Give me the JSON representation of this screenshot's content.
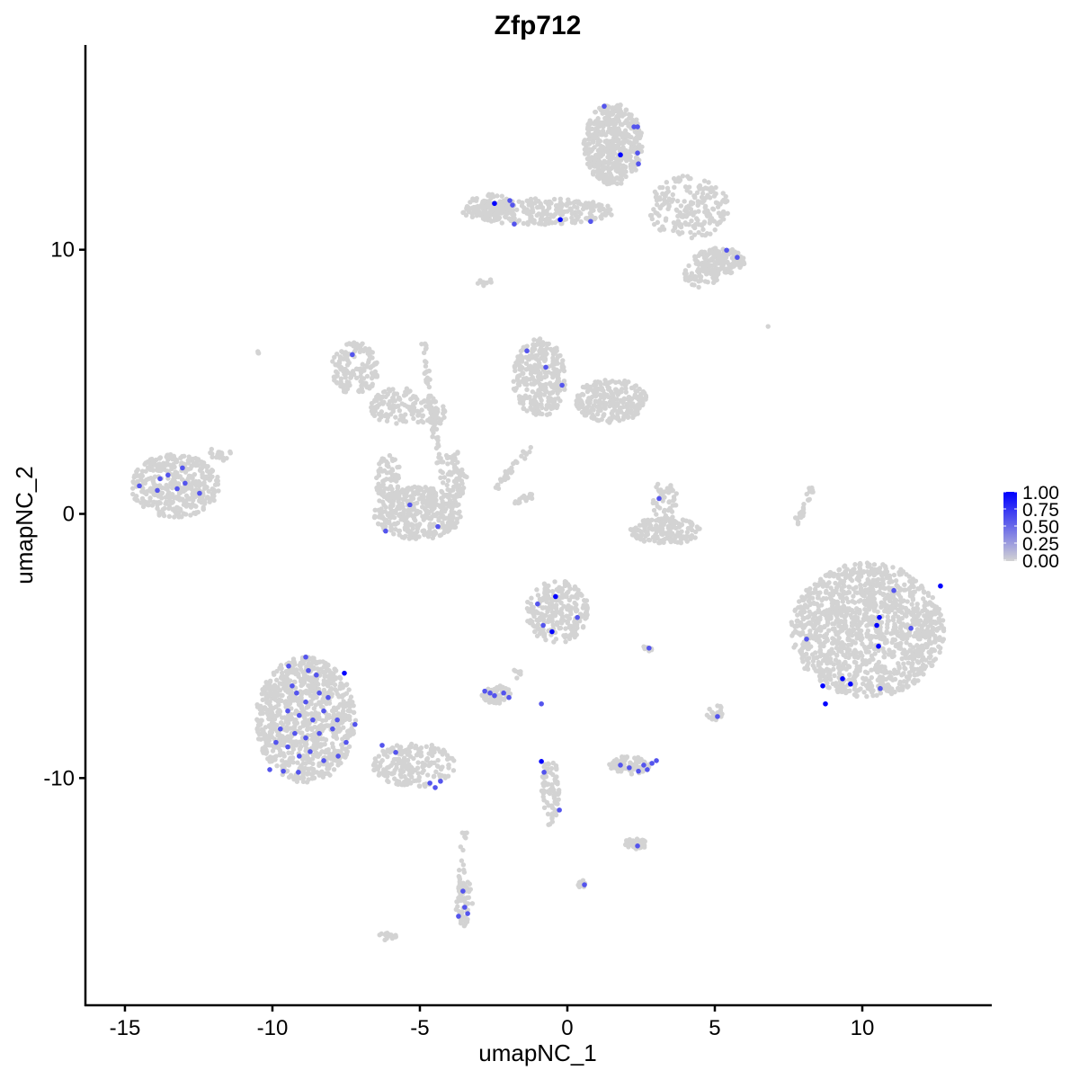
{
  "chart_data": {
    "type": "scatter",
    "title": "Zfp712",
    "xlabel": "umapNC_1",
    "ylabel": "umapNC_2",
    "xlim": [
      -16.34,
      14.39
    ],
    "ylim": [
      -18.6,
      17.75
    ],
    "x_ticks": [
      -15,
      -10,
      -5,
      0,
      5,
      10
    ],
    "y_ticks": [
      -10,
      0,
      10
    ],
    "x_tick_labels": [
      "-15",
      "-10",
      "-5",
      "0",
      "5",
      "10"
    ],
    "y_tick_labels": [
      "-10",
      "0",
      "10"
    ],
    "grid": false,
    "legend": {
      "position": "right",
      "range": [
        0,
        1
      ],
      "labels": [
        "1.00",
        "0.75",
        "0.50",
        "0.25",
        "0.00"
      ],
      "low_color": "#d3d3d3",
      "high_color": "#0000ff"
    },
    "background_clusters": [
      {
        "cx": 1.55,
        "cy": 14.0,
        "rx": 1.0,
        "ry": 1.55,
        "n": 500
      },
      {
        "cx": 4.1,
        "cy": 11.6,
        "rx": 1.4,
        "ry": 1.2,
        "n": 200
      },
      {
        "cx": 5.15,
        "cy": 9.57,
        "rx": 0.9,
        "ry": 0.5,
        "n": 150
      },
      {
        "cx": 4.54,
        "cy": 9.06,
        "rx": 0.6,
        "ry": 0.5,
        "n": 60
      },
      {
        "cx": -0.95,
        "cy": 11.45,
        "rx": 2.6,
        "ry": 0.5,
        "n": 250
      },
      {
        "cx": -2.62,
        "cy": 11.6,
        "rx": 0.8,
        "ry": 0.5,
        "n": 100
      },
      {
        "cx": -7.2,
        "cy": 5.5,
        "rx": 0.8,
        "ry": 1.0,
        "n": 150
      },
      {
        "cx": -5.8,
        "cy": 4.1,
        "rx": 0.9,
        "ry": 0.7,
        "n": 100
      },
      {
        "cx": -4.7,
        "cy": 3.8,
        "rx": 0.6,
        "ry": 0.5,
        "n": 50
      },
      {
        "cx": -5.06,
        "cy": 0.03,
        "rx": 1.5,
        "ry": 1.0,
        "n": 400
      },
      {
        "cx": -6.1,
        "cy": 1.4,
        "rx": 0.45,
        "ry": 0.85,
        "n": 80
      },
      {
        "cx": -3.85,
        "cy": 1.4,
        "rx": 0.45,
        "ry": 1.0,
        "n": 80
      },
      {
        "cx": -0.95,
        "cy": 5.14,
        "rx": 0.9,
        "ry": 1.5,
        "n": 300
      },
      {
        "cx": 1.49,
        "cy": 4.29,
        "rx": 1.2,
        "ry": 0.85,
        "n": 250
      },
      {
        "cx": -13.3,
        "cy": 1.06,
        "rx": 1.5,
        "ry": 1.2,
        "n": 400
      },
      {
        "cx": 3.32,
        "cy": -0.65,
        "rx": 1.2,
        "ry": 0.5,
        "n": 150
      },
      {
        "cx": 3.3,
        "cy": 0.4,
        "rx": 0.45,
        "ry": 0.85,
        "n": 50
      },
      {
        "cx": 10.18,
        "cy": -4.4,
        "rx": 2.6,
        "ry": 2.55,
        "n": 1300
      },
      {
        "cx": -0.34,
        "cy": -3.71,
        "rx": 1.07,
        "ry": 1.2,
        "n": 250
      },
      {
        "cx": -8.87,
        "cy": -7.8,
        "rx": 1.7,
        "ry": 2.4,
        "n": 900
      },
      {
        "cx": -5.2,
        "cy": -9.5,
        "rx": 1.4,
        "ry": 0.85,
        "n": 200
      },
      {
        "cx": -2.4,
        "cy": -6.85,
        "rx": 0.5,
        "ry": 0.35,
        "n": 60
      },
      {
        "cx": 2.1,
        "cy": -9.5,
        "rx": 0.7,
        "ry": 0.35,
        "n": 80
      },
      {
        "cx": -0.58,
        "cy": -10.5,
        "rx": 0.3,
        "ry": 1.3,
        "n": 80
      },
      {
        "cx": 2.3,
        "cy": -12.5,
        "rx": 0.4,
        "ry": 0.2,
        "n": 40
      },
      {
        "cx": -3.5,
        "cy": -14.7,
        "rx": 0.3,
        "ry": 0.9,
        "n": 60
      },
      {
        "cx": -6.1,
        "cy": -16.0,
        "rx": 0.3,
        "ry": 0.15,
        "n": 15
      },
      {
        "cx": 0.5,
        "cy": -14.0,
        "rx": 0.15,
        "ry": 0.15,
        "n": 10
      },
      {
        "cx": 5.0,
        "cy": -7.5,
        "rx": 0.3,
        "ry": 0.3,
        "n": 20
      },
      {
        "cx": 2.7,
        "cy": -5.1,
        "rx": 0.2,
        "ry": 0.1,
        "n": 10
      },
      {
        "cx": -2.8,
        "cy": 8.8,
        "rx": 0.3,
        "ry": 0.2,
        "n": 10
      },
      {
        "cx": -10.5,
        "cy": 6.1,
        "rx": 0.1,
        "ry": 0.1,
        "n": 3
      },
      {
        "cx": -11.8,
        "cy": 2.3,
        "rx": 0.4,
        "ry": 0.3,
        "n": 20
      },
      {
        "cx": 6.8,
        "cy": 7.1,
        "rx": 0.05,
        "ry": 0.05,
        "n": 1
      }
    ],
    "background_segments": [
      {
        "from": [
          -4.9,
          6.5
        ],
        "to": [
          -4.3,
          1.5
        ],
        "n": 60
      },
      {
        "from": [
          -1.3,
          2.5
        ],
        "to": [
          -2.4,
          1.0
        ],
        "n": 30
      },
      {
        "from": [
          -1.7,
          0.5
        ],
        "to": [
          -1.2,
          0.7
        ],
        "n": 20
      },
      {
        "from": [
          7.8,
          -0.3
        ],
        "to": [
          8.3,
          1.0
        ],
        "n": 30
      },
      {
        "from": [
          -3.5,
          -12.0
        ],
        "to": [
          -3.6,
          -13.8
        ],
        "n": 15
      },
      {
        "from": [
          -1.6,
          -6.2
        ],
        "to": [
          -1.8,
          -5.8
        ],
        "n": 10
      }
    ],
    "expressing_cells": [
      {
        "x": 1.25,
        "y": 15.43,
        "value": 0.6
      },
      {
        "x": 2.26,
        "y": 14.65,
        "value": 0.6
      },
      {
        "x": 2.38,
        "y": 14.65,
        "value": 0.6
      },
      {
        "x": 1.8,
        "y": 13.59,
        "value": 1.0
      },
      {
        "x": 2.38,
        "y": 13.66,
        "value": 0.6
      },
      {
        "x": 2.41,
        "y": 13.25,
        "value": 0.6
      },
      {
        "x": -2.47,
        "y": 11.75,
        "value": 1.0
      },
      {
        "x": -1.95,
        "y": 11.86,
        "value": 0.6
      },
      {
        "x": -1.86,
        "y": 11.69,
        "value": 0.6
      },
      {
        "x": -1.8,
        "y": 10.97,
        "value": 0.6
      },
      {
        "x": -0.24,
        "y": 11.14,
        "value": 1.0
      },
      {
        "x": 0.79,
        "y": 11.07,
        "value": 0.6
      },
      {
        "x": 5.4,
        "y": 9.98,
        "value": 0.6
      },
      {
        "x": 5.76,
        "y": 9.71,
        "value": 0.6
      },
      {
        "x": -7.29,
        "y": 6.03,
        "value": 0.6
      },
      {
        "x": -1.37,
        "y": 6.17,
        "value": 0.6
      },
      {
        "x": -0.73,
        "y": 5.55,
        "value": 0.6
      },
      {
        "x": -0.18,
        "y": 4.87,
        "value": 0.6
      },
      {
        "x": -14.51,
        "y": 1.06,
        "value": 0.6
      },
      {
        "x": -13.9,
        "y": 0.89,
        "value": 0.6
      },
      {
        "x": -13.54,
        "y": 1.47,
        "value": 0.6
      },
      {
        "x": -13.05,
        "y": 1.74,
        "value": 0.6
      },
      {
        "x": -12.96,
        "y": 1.16,
        "value": 0.6
      },
      {
        "x": -13.23,
        "y": 0.95,
        "value": 0.6
      },
      {
        "x": -12.47,
        "y": 0.78,
        "value": 0.6
      },
      {
        "x": -13.81,
        "y": 1.33,
        "value": 0.6
      },
      {
        "x": -5.34,
        "y": 0.34,
        "value": 0.6
      },
      {
        "x": -6.16,
        "y": -0.65,
        "value": 0.6
      },
      {
        "x": -4.39,
        "y": -0.48,
        "value": 0.6
      },
      {
        "x": 3.11,
        "y": 0.58,
        "value": 0.6
      },
      {
        "x": -0.4,
        "y": -3.13,
        "value": 1.0
      },
      {
        "x": -1.01,
        "y": -3.41,
        "value": 0.6
      },
      {
        "x": -0.52,
        "y": -4.46,
        "value": 1.0
      },
      {
        "x": -0.82,
        "y": -4.22,
        "value": 0.6
      },
      {
        "x": 0.34,
        "y": -3.92,
        "value": 0.6
      },
      {
        "x": 2.77,
        "y": -5.08,
        "value": 0.6
      },
      {
        "x": -2.62,
        "y": -6.78,
        "value": 0.6
      },
      {
        "x": -2.47,
        "y": -6.88,
        "value": 0.6
      },
      {
        "x": -1.98,
        "y": -6.95,
        "value": 0.6
      },
      {
        "x": -2.8,
        "y": -6.71,
        "value": 0.6
      },
      {
        "x": -2.16,
        "y": -6.78,
        "value": 0.6
      },
      {
        "x": -0.88,
        "y": -7.19,
        "value": 0.6
      },
      {
        "x": 5.09,
        "y": -7.67,
        "value": 0.6
      },
      {
        "x": -0.88,
        "y": -9.37,
        "value": 1.0
      },
      {
        "x": -0.79,
        "y": -9.78,
        "value": 0.6
      },
      {
        "x": -0.27,
        "y": -11.21,
        "value": 0.6
      },
      {
        "x": 2.1,
        "y": -9.61,
        "value": 0.6
      },
      {
        "x": 2.41,
        "y": -9.74,
        "value": 0.6
      },
      {
        "x": 2.71,
        "y": -9.68,
        "value": 0.6
      },
      {
        "x": 2.87,
        "y": -9.44,
        "value": 0.6
      },
      {
        "x": 3.02,
        "y": -9.34,
        "value": 0.6
      },
      {
        "x": 1.8,
        "y": -9.51,
        "value": 0.6
      },
      {
        "x": 2.59,
        "y": -9.51,
        "value": 0.6
      },
      {
        "x": 2.38,
        "y": -12.57,
        "value": 0.6
      },
      {
        "x": 0.58,
        "y": -14.04,
        "value": 0.6
      },
      {
        "x": -3.54,
        "y": -14.28,
        "value": 0.6
      },
      {
        "x": -3.69,
        "y": -15.23,
        "value": 0.6
      },
      {
        "x": -3.38,
        "y": -15.13,
        "value": 0.6
      },
      {
        "x": -3.48,
        "y": -14.89,
        "value": 0.6
      },
      {
        "x": 11.07,
        "y": -2.9,
        "value": 0.6
      },
      {
        "x": 12.65,
        "y": -2.73,
        "value": 1.0
      },
      {
        "x": 10.58,
        "y": -3.92,
        "value": 1.0
      },
      {
        "x": 10.49,
        "y": -4.22,
        "value": 1.0
      },
      {
        "x": 10.55,
        "y": -5.01,
        "value": 1.0
      },
      {
        "x": 11.65,
        "y": -4.33,
        "value": 0.6
      },
      {
        "x": 8.11,
        "y": -4.74,
        "value": 0.6
      },
      {
        "x": 8.66,
        "y": -6.51,
        "value": 1.0
      },
      {
        "x": 9.33,
        "y": -6.24,
        "value": 1.0
      },
      {
        "x": 9.6,
        "y": -6.44,
        "value": 1.0
      },
      {
        "x": 8.75,
        "y": -7.19,
        "value": 1.0
      },
      {
        "x": 10.61,
        "y": -6.61,
        "value": 0.6
      },
      {
        "x": -7.56,
        "y": -6.03,
        "value": 1.0
      },
      {
        "x": -8.87,
        "y": -5.42,
        "value": 0.6
      },
      {
        "x": -8.78,
        "y": -5.93,
        "value": 0.6
      },
      {
        "x": -8.51,
        "y": -6.1,
        "value": 0.6
      },
      {
        "x": -9.45,
        "y": -5.76,
        "value": 0.6
      },
      {
        "x": -9.33,
        "y": -6.51,
        "value": 0.6
      },
      {
        "x": -9.18,
        "y": -6.78,
        "value": 0.6
      },
      {
        "x": -8.87,
        "y": -7.12,
        "value": 0.6
      },
      {
        "x": -8.41,
        "y": -6.78,
        "value": 0.6
      },
      {
        "x": -8.11,
        "y": -6.95,
        "value": 0.6
      },
      {
        "x": -9.48,
        "y": -7.46,
        "value": 0.6
      },
      {
        "x": -9.09,
        "y": -7.63,
        "value": 0.6
      },
      {
        "x": -8.63,
        "y": -7.8,
        "value": 0.6
      },
      {
        "x": -8.26,
        "y": -7.46,
        "value": 0.6
      },
      {
        "x": -7.8,
        "y": -7.8,
        "value": 0.6
      },
      {
        "x": -9.73,
        "y": -8.14,
        "value": 0.6
      },
      {
        "x": -9.24,
        "y": -8.31,
        "value": 0.6
      },
      {
        "x": -8.87,
        "y": -8.48,
        "value": 0.6
      },
      {
        "x": -8.41,
        "y": -8.31,
        "value": 0.6
      },
      {
        "x": -7.96,
        "y": -8.14,
        "value": 0.6
      },
      {
        "x": -7.5,
        "y": -8.65,
        "value": 0.6
      },
      {
        "x": -7.2,
        "y": -7.97,
        "value": 0.6
      },
      {
        "x": -9.88,
        "y": -8.65,
        "value": 0.6
      },
      {
        "x": -9.48,
        "y": -8.82,
        "value": 0.6
      },
      {
        "x": -9.09,
        "y": -9.17,
        "value": 0.6
      },
      {
        "x": -8.72,
        "y": -9.0,
        "value": 0.6
      },
      {
        "x": -8.26,
        "y": -9.34,
        "value": 0.6
      },
      {
        "x": -10.09,
        "y": -9.68,
        "value": 0.6
      },
      {
        "x": -9.63,
        "y": -9.74,
        "value": 0.6
      },
      {
        "x": -9.12,
        "y": -9.78,
        "value": 0.6
      },
      {
        "x": -7.77,
        "y": -9.17,
        "value": 0.6
      },
      {
        "x": -6.28,
        "y": -8.76,
        "value": 0.6
      },
      {
        "x": -5.82,
        "y": -9.03,
        "value": 0.6
      },
      {
        "x": -4.66,
        "y": -10.19,
        "value": 0.6
      },
      {
        "x": -4.48,
        "y": -10.36,
        "value": 0.6
      },
      {
        "x": -4.3,
        "y": -10.12,
        "value": 0.6
      }
    ]
  }
}
